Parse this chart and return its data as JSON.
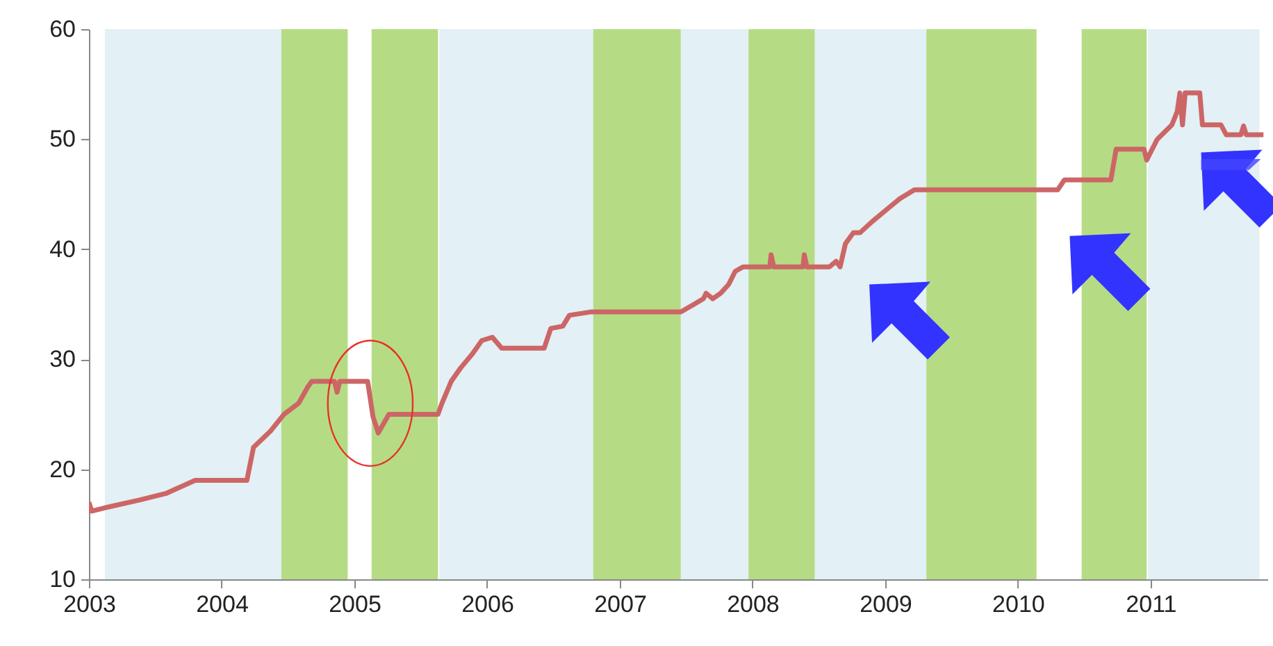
{
  "chart_data": {
    "type": "line",
    "x": [
      2003,
      2003.02,
      2003.12,
      2003.38,
      2003.58,
      2003.8,
      2004.19,
      2004.24,
      2004.37,
      2004.47,
      2004.58,
      2004.65,
      2004.68,
      2004.85,
      2004.87,
      2004.89,
      2005.1,
      2005.14,
      2005.18,
      2005.26,
      2005.63,
      2005.66,
      2005.73,
      2005.8,
      2005.89,
      2005.96,
      2006.04,
      2006.11,
      2006.43,
      2006.48,
      2006.57,
      2006.62,
      2006.78,
      2007.46,
      2007.56,
      2007.63,
      2007.65,
      2007.7,
      2007.76,
      2007.82,
      2007.87,
      2007.93,
      2008.13,
      2008.14,
      2008.16,
      2008.38,
      2008.39,
      2008.41,
      2008.58,
      2008.63,
      2008.66,
      2008.7,
      2008.76,
      2008.81,
      2008.9,
      2009.0,
      2009.11,
      2009.22,
      2009.33,
      2010.3,
      2010.35,
      2010.7,
      2010.74,
      2010.95,
      2010.97,
      2011.05,
      2011.16,
      2011.2,
      2011.22,
      2011.24,
      2011.26,
      2011.37,
      2011.39,
      2011.53,
      2011.57,
      2011.68,
      2011.7,
      2011.72,
      2011.85
    ],
    "values": [
      17,
      16.2,
      16.5,
      17.2,
      17.8,
      19,
      19,
      22,
      23.5,
      25,
      26,
      27.5,
      28,
      28,
      27,
      28,
      28,
      24.8,
      23.3,
      25,
      25,
      26,
      28,
      29.2,
      30.5,
      31.7,
      32,
      31,
      31,
      32.8,
      33,
      34,
      34.3,
      34.3,
      35,
      35.5,
      36,
      35.5,
      36,
      36.8,
      38,
      38.4,
      38.4,
      39.5,
      38.4,
      38.4,
      39.5,
      38.4,
      38.4,
      38.9,
      38.4,
      40.5,
      41.5,
      41.5,
      42.5,
      43.5,
      44.6,
      45.4,
      45.4,
      45.4,
      46.3,
      46.3,
      49.1,
      49.1,
      48.1,
      50,
      51.3,
      52.5,
      54.2,
      51.3,
      54.2,
      54.2,
      51.3,
      51.3,
      50.4,
      50.4,
      51.2,
      50.4,
      50.4
    ],
    "color": "#cc6666",
    "xlim": [
      2003,
      2011.88
    ],
    "xticks": [
      2003,
      2004,
      2005,
      2006,
      2007,
      2008,
      2009,
      2010,
      2011
    ],
    "ylim": [
      10,
      60
    ],
    "yticks": [
      10,
      20,
      30,
      40,
      50,
      60
    ],
    "bands": [
      {
        "axis": "x",
        "from": 2003.12,
        "to": 2004.61,
        "color": "#e3f0f5"
      },
      {
        "axis": "x",
        "from": 2004.45,
        "to": 2004.95,
        "color": "#b5dc85"
      },
      {
        "axis": "x",
        "from": 2005.13,
        "to": 2005.63,
        "color": "#b5dc85"
      },
      {
        "axis": "x",
        "from": 2005.64,
        "to": 2006.8,
        "color": "#e3f0f5"
      },
      {
        "axis": "x",
        "from": 2006.8,
        "to": 2007.46,
        "color": "#b5dc85"
      },
      {
        "axis": "x",
        "from": 2007.46,
        "to": 2008.14,
        "color": "#e3f0f5"
      },
      {
        "axis": "x",
        "from": 2007.97,
        "to": 2008.47,
        "color": "#b5dc85"
      },
      {
        "axis": "x",
        "from": 2008.47,
        "to": 2009.31,
        "color": "#e3f0f5"
      },
      {
        "axis": "x",
        "from": 2009.31,
        "to": 2010.14,
        "color": "#b5dc85"
      },
      {
        "axis": "x",
        "from": 2010.48,
        "to": 2010.97,
        "color": "#b5dc85"
      },
      {
        "axis": "x",
        "from": 2010.98,
        "to": 2011.82,
        "color": "#e3f0f5"
      }
    ]
  }
}
